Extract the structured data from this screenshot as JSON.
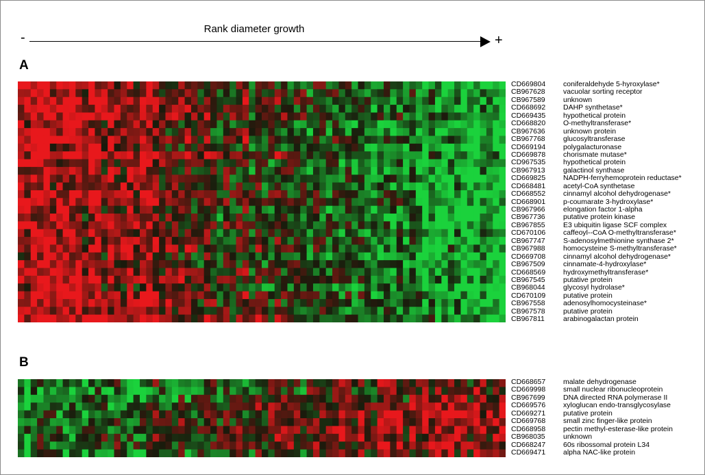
{
  "chart_data": {
    "type": "heatmap",
    "axis": {
      "title": "Rank diameter growth",
      "low_end": "-",
      "high_end": "+"
    },
    "color_scale": {
      "low": "#1bd23c",
      "mid": "#1a1a0c",
      "high": "#e8181c"
    },
    "panels": [
      {
        "label": "A",
        "columns": 76,
        "genes": [
          {
            "id": "CD669804",
            "name": "coniferaldehyde 5-hyroxylase*"
          },
          {
            "id": "CB967628",
            "name": "vacuolar sorting receptor"
          },
          {
            "id": "CB967589",
            "name": "unknown"
          },
          {
            "id": "CD668692",
            "name": "DAHP synthetase*"
          },
          {
            "id": "CD669435",
            "name": "hypothetical protein"
          },
          {
            "id": "CD668820",
            "name": "O-methyltransferase*"
          },
          {
            "id": "CB967636",
            "name": "unknown protein"
          },
          {
            "id": "CB967768",
            "name": "glucosyltransferase"
          },
          {
            "id": "CD669194",
            "name": "polygalacturonase"
          },
          {
            "id": "CD669878",
            "name": "chorismate mutase*"
          },
          {
            "id": "CD967535",
            "name": "hypothetical protein"
          },
          {
            "id": "CB967913",
            "name": "galactinol synthase"
          },
          {
            "id": "CD669825",
            "name": "NADPH-ferryhemoprotein reductase*"
          },
          {
            "id": "CD668481",
            "name": "acetyl-CoA synthetase"
          },
          {
            "id": "CD668552",
            "name": "cinnamyl alcohol dehydrogenase*"
          },
          {
            "id": "CD668901",
            "name": "p-coumarate 3-hydroxylase*"
          },
          {
            "id": "CB967966",
            "name": "elongation factor 1-alpha"
          },
          {
            "id": "CB967736",
            "name": "putative protein kinase"
          },
          {
            "id": "CB967855",
            "name": "E3 ubiquitin ligase SCF complex"
          },
          {
            "id": "CD670106",
            "name": "caffeoyl--CoA O-methyltransferase*"
          },
          {
            "id": "CB967747",
            "name": "S-adenosylmethionine synthase 2*"
          },
          {
            "id": "CB967988",
            "name": "homocysteine S-methyltransferase*"
          },
          {
            "id": "CD669708",
            "name": "cinnamyl alcohol dehydrogenase*"
          },
          {
            "id": "CB967509",
            "name": "cinnamate-4-hydroxylase*"
          },
          {
            "id": "CD668569",
            "name": "hydroxymethyltransferase*"
          },
          {
            "id": "CB967545",
            "name": "putative protein"
          },
          {
            "id": "CB968044",
            "name": "glycosyl hydrolase*"
          },
          {
            "id": "CD670109",
            "name": "putative protein"
          },
          {
            "id": "CB967558",
            "name": "adenosylhomocysteinase*"
          },
          {
            "id": "CB967578",
            "name": "putative protein"
          },
          {
            "id": "CB967811",
            "name": "arabinogalactan protein"
          }
        ]
      },
      {
        "label": "B",
        "columns": 76,
        "genes": [
          {
            "id": "CD668657",
            "name": "malate dehydrogenase"
          },
          {
            "id": "CD669998",
            "name": "small nuclear ribonucleoprotein"
          },
          {
            "id": "CB967699",
            "name": "DNA directed RNA polymerase II"
          },
          {
            "id": "CD669576",
            "name": "xyloglucan endo-transglycosylase"
          },
          {
            "id": "CD669271",
            "name": "putative protein"
          },
          {
            "id": "CD669768",
            "name": "small zinc finger-like protein"
          },
          {
            "id": "CD668958",
            "name": "pectin methyl-esterase-like protein"
          },
          {
            "id": "CB968035",
            "name": "unknown"
          },
          {
            "id": "CD668247",
            "name": "60s ribossomal protein L34"
          },
          {
            "id": "CD669471",
            "name": "alpha NAC-like protein"
          }
        ]
      }
    ]
  }
}
